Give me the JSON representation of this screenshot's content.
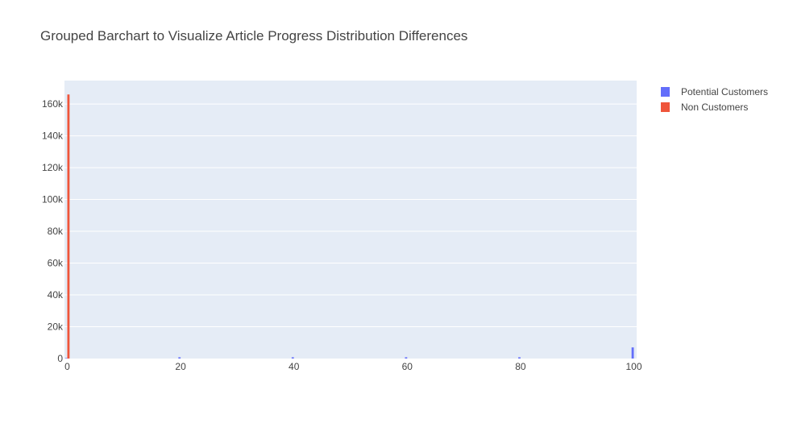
{
  "chart_data": {
    "type": "bar",
    "title": "Grouped Barchart to Visualize Article Progress Distribution Differences",
    "xlabel": "",
    "ylabel": "",
    "xlim": [
      -0.5,
      100.5
    ],
    "ylim": [
      0,
      174737
    ],
    "x_ticks": [
      0,
      20,
      40,
      60,
      80,
      100
    ],
    "x_tick_labels": [
      "0",
      "20",
      "40",
      "60",
      "80",
      "100"
    ],
    "y_ticks": [
      0,
      20000,
      40000,
      60000,
      80000,
      100000,
      120000,
      140000,
      160000
    ],
    "y_tick_labels": [
      "0",
      "20k",
      "40k",
      "60k",
      "80k",
      "100k",
      "120k",
      "140k",
      "160k"
    ],
    "grid": true,
    "legend_position": "top-right",
    "colors": {
      "background": "#E5ECF6",
      "grid": "#ffffff"
    },
    "series": [
      {
        "name": "Potential Customers",
        "color": "#636EFA",
        "x": [
          0,
          20,
          40,
          60,
          80,
          100
        ],
        "values": [
          300,
          800,
          800,
          800,
          800,
          7000
        ]
      },
      {
        "name": "Non Customers",
        "color": "#EF553B",
        "x": [
          0
        ],
        "values": [
          166000
        ]
      }
    ]
  }
}
